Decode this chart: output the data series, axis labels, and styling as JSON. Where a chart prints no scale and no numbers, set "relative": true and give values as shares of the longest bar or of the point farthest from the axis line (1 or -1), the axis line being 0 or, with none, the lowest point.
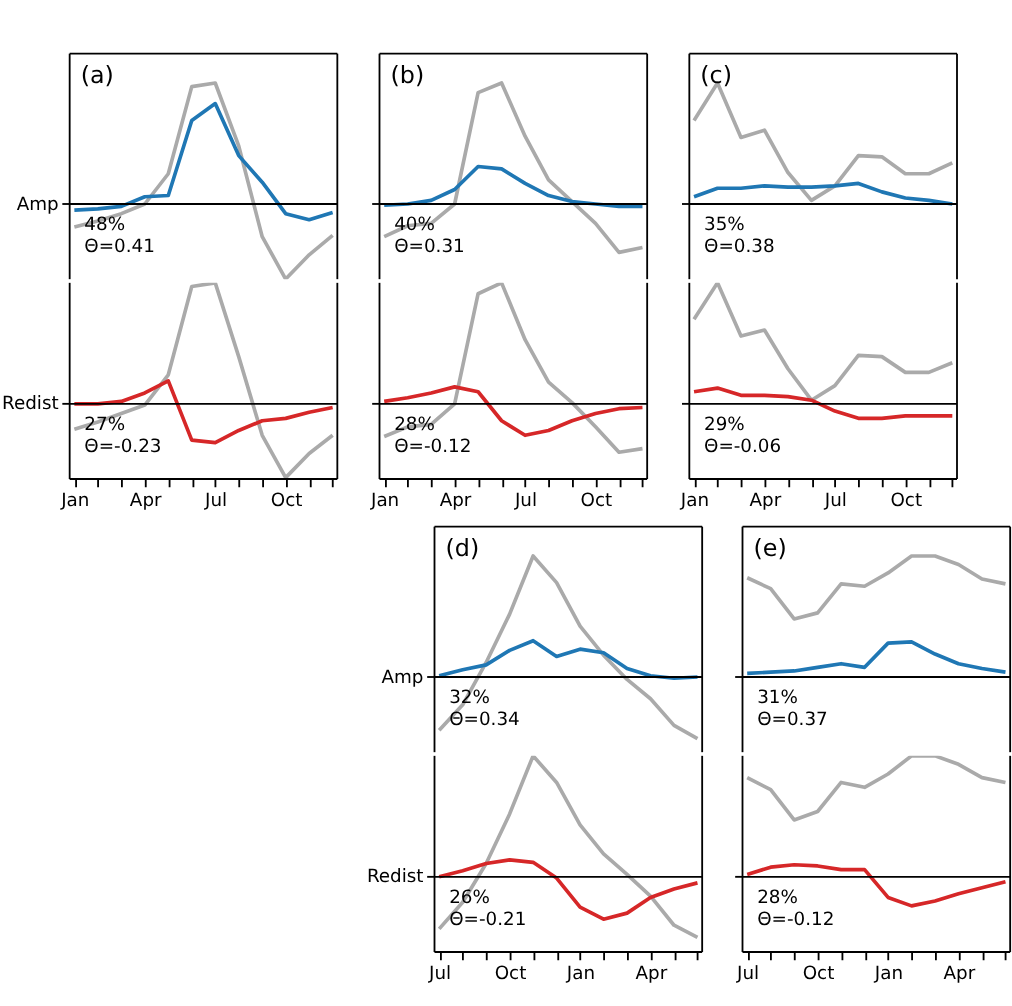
{
  "chart_data": [
    {
      "type": "line",
      "title": "(a)",
      "relative": true,
      "ylabel": "Amp",
      "tick_labels": false,
      "categories": [
        null,
        null,
        null,
        null,
        null,
        null,
        null,
        null,
        null,
        null,
        null,
        null
      ],
      "annotations": [
        "48%\nΘ=0.41"
      ],
      "series": [
        {
          "color": "#aaaaaa",
          "values": [
            -0.19,
            -0.14,
            -0.08,
            0.0,
            0.25,
            0.97,
            1.0,
            0.48,
            -0.27,
            -0.62,
            -0.42,
            -0.26
          ]
        },
        {
          "color": "#1f77b4",
          "values": [
            -0.05,
            -0.04,
            -0.02,
            0.06,
            0.07,
            0.69,
            0.83,
            0.4,
            0.18,
            -0.08,
            -0.13,
            -0.07
          ]
        }
      ]
    },
    {
      "type": "line",
      "relative": true,
      "ylabel": "Redist",
      "categories": [
        "Jan",
        null,
        null,
        "Apr",
        null,
        null,
        "Jul",
        null,
        null,
        "Oct",
        null,
        null
      ],
      "annotations": [
        "27%\nΘ=-0.23"
      ],
      "series": [
        {
          "color": "#aaaaaa",
          "values": [
            -0.21,
            -0.15,
            -0.08,
            -0.01,
            0.24,
            0.97,
            1.0,
            0.39,
            -0.26,
            -0.61,
            -0.41,
            -0.26
          ]
        },
        {
          "color": "#d62728",
          "values": [
            0.0,
            0.0,
            0.02,
            0.09,
            0.19,
            -0.3,
            -0.32,
            -0.22,
            -0.14,
            -0.12,
            -0.07,
            -0.03
          ]
        }
      ]
    },
    {
      "type": "line",
      "title": "(b)",
      "relative": true,
      "tick_labels": false,
      "categories": [
        null,
        null,
        null,
        null,
        null,
        null,
        null,
        null,
        null,
        null,
        null,
        null
      ],
      "annotations": [
        "40%\nΘ=0.31"
      ],
      "series": [
        {
          "color": "#aaaaaa",
          "values": [
            -0.27,
            -0.18,
            -0.16,
            0.0,
            0.92,
            1.0,
            0.56,
            0.2,
            0.02,
            -0.16,
            -0.4,
            -0.36
          ]
        },
        {
          "color": "#1f77b4",
          "values": [
            -0.01,
            0.0,
            0.03,
            0.12,
            0.31,
            0.29,
            0.17,
            0.07,
            0.02,
            0.0,
            -0.02,
            -0.02
          ]
        }
      ]
    },
    {
      "type": "line",
      "relative": true,
      "categories": [
        "Jan",
        null,
        null,
        "Apr",
        null,
        null,
        "Jul",
        null,
        null,
        "Oct",
        null,
        null
      ],
      "annotations": [
        "28%\nΘ=-0.12"
      ],
      "series": [
        {
          "color": "#aaaaaa",
          "values": [
            -0.27,
            -0.19,
            -0.17,
            0.0,
            0.91,
            1.0,
            0.53,
            0.18,
            0.01,
            -0.19,
            -0.4,
            -0.37
          ]
        },
        {
          "color": "#d62728",
          "values": [
            0.02,
            0.05,
            0.09,
            0.14,
            0.1,
            -0.14,
            -0.26,
            -0.22,
            -0.14,
            -0.08,
            -0.04,
            -0.03
          ]
        }
      ]
    },
    {
      "type": "line",
      "title": "(c)",
      "relative": true,
      "tick_labels": false,
      "categories": [
        null,
        null,
        null,
        null,
        null,
        null,
        null,
        null,
        null,
        null,
        null,
        null
      ],
      "annotations": [
        "35%\nΘ=0.38"
      ],
      "series": [
        {
          "color": "#aaaaaa",
          "values": [
            0.69,
            1.0,
            0.55,
            0.61,
            0.26,
            0.03,
            0.15,
            0.4,
            0.39,
            0.25,
            0.25,
            0.34
          ]
        },
        {
          "color": "#1f77b4",
          "values": [
            0.06,
            0.13,
            0.13,
            0.15,
            0.14,
            0.14,
            0.15,
            0.17,
            0.1,
            0.05,
            0.03,
            0.0
          ]
        }
      ]
    },
    {
      "type": "line",
      "relative": true,
      "categories": [
        "Jan",
        null,
        null,
        "Apr",
        null,
        null,
        "Jul",
        null,
        null,
        "Oct",
        null,
        null
      ],
      "annotations": [
        "29%\nΘ=-0.06"
      ],
      "series": [
        {
          "color": "#aaaaaa",
          "values": [
            0.7,
            1.0,
            0.56,
            0.61,
            0.29,
            0.03,
            0.15,
            0.4,
            0.39,
            0.26,
            0.26,
            0.34
          ]
        },
        {
          "color": "#d62728",
          "values": [
            0.1,
            0.13,
            0.07,
            0.07,
            0.06,
            0.03,
            -0.06,
            -0.12,
            -0.12,
            -0.1,
            -0.1,
            -0.1
          ]
        }
      ]
    },
    {
      "type": "line",
      "title": "(d)",
      "relative": true,
      "ylabel": "Amp",
      "tick_labels": false,
      "categories": [
        null,
        null,
        null,
        null,
        null,
        null,
        null,
        null,
        null,
        null,
        null,
        null
      ],
      "annotations": [
        "32%\nΘ=0.34"
      ],
      "series": [
        {
          "color": "#aaaaaa",
          "values": [
            -0.44,
            -0.23,
            0.12,
            0.52,
            1.0,
            0.78,
            0.42,
            0.18,
            -0.02,
            -0.18,
            -0.4,
            -0.51
          ]
        },
        {
          "color": "#1f77b4",
          "values": [
            0.01,
            0.06,
            0.1,
            0.22,
            0.3,
            0.17,
            0.23,
            0.2,
            0.07,
            0.01,
            -0.01,
            0.0
          ]
        }
      ]
    },
    {
      "type": "line",
      "relative": true,
      "ylabel": "Redist",
      "categories": [
        "Jul",
        null,
        null,
        "Oct",
        null,
        null,
        "Jan",
        null,
        null,
        "Apr",
        null,
        null
      ],
      "annotations": [
        "26%\nΘ=-0.21"
      ],
      "series": [
        {
          "color": "#aaaaaa",
          "values": [
            -0.43,
            -0.21,
            0.11,
            0.52,
            1.0,
            0.78,
            0.43,
            0.19,
            0.02,
            -0.16,
            -0.4,
            -0.5
          ]
        },
        {
          "color": "#d62728",
          "values": [
            0.0,
            0.05,
            0.11,
            0.14,
            0.12,
            -0.01,
            -0.25,
            -0.35,
            -0.3,
            -0.17,
            -0.1,
            -0.05
          ]
        }
      ]
    },
    {
      "type": "line",
      "title": "(e)",
      "relative": true,
      "tick_labels": false,
      "categories": [
        null,
        null,
        null,
        null,
        null,
        null,
        null,
        null,
        null,
        null,
        null,
        null
      ],
      "annotations": [
        "31%\nΘ=0.37"
      ],
      "series": [
        {
          "color": "#aaaaaa",
          "values": [
            0.82,
            0.73,
            0.48,
            0.53,
            0.77,
            0.75,
            0.86,
            1.0,
            1.0,
            0.93,
            0.81,
            0.77
          ]
        },
        {
          "color": "#1f77b4",
          "values": [
            0.03,
            0.04,
            0.05,
            0.08,
            0.11,
            0.08,
            0.28,
            0.29,
            0.19,
            0.11,
            0.07,
            0.04
          ]
        }
      ]
    },
    {
      "type": "line",
      "relative": true,
      "categories": [
        "Jul",
        null,
        null,
        "Oct",
        null,
        null,
        "Jan",
        null,
        null,
        "Apr",
        null,
        null
      ],
      "annotations": [
        "28%\nΘ=-0.12"
      ],
      "series": [
        {
          "color": "#aaaaaa",
          "values": [
            0.82,
            0.72,
            0.47,
            0.54,
            0.78,
            0.74,
            0.85,
            1.0,
            1.0,
            0.93,
            0.82,
            0.78
          ]
        },
        {
          "color": "#d62728",
          "values": [
            0.02,
            0.08,
            0.1,
            0.09,
            0.06,
            0.06,
            -0.17,
            -0.24,
            -0.2,
            -0.14,
            -0.09,
            -0.04
          ]
        }
      ]
    }
  ]
}
